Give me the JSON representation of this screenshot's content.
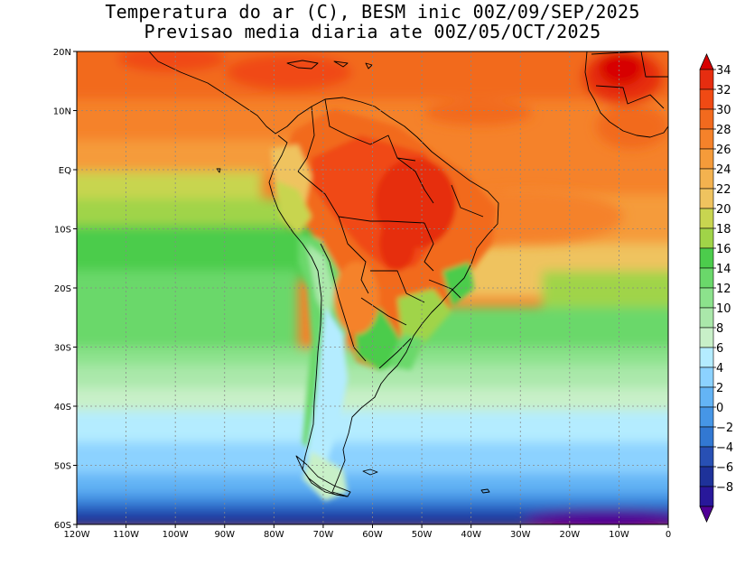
{
  "title": {
    "line1": "Temperatura do ar (C), BESM inic 00Z/09/SEP/2025",
    "line2": "Previsao media diaria ate 00Z/05/OCT/2025"
  },
  "map": {
    "lon_range": [
      -120,
      0
    ],
    "lat_range": [
      -60,
      20
    ],
    "lon_labels": [
      {
        "lon": -120,
        "text": "120W"
      },
      {
        "lon": -110,
        "text": "110W"
      },
      {
        "lon": -100,
        "text": "100W"
      },
      {
        "lon": -90,
        "text": "90W"
      },
      {
        "lon": -80,
        "text": "80W"
      },
      {
        "lon": -70,
        "text": "70W"
      },
      {
        "lon": -60,
        "text": "60W"
      },
      {
        "lon": -50,
        "text": "50W"
      },
      {
        "lon": -40,
        "text": "40W"
      },
      {
        "lon": -30,
        "text": "30W"
      },
      {
        "lon": -20,
        "text": "20W"
      },
      {
        "lon": -10,
        "text": "10W"
      },
      {
        "lon": 0,
        "text": "0"
      }
    ],
    "lat_labels": [
      {
        "lat": 20,
        "text": "20N"
      },
      {
        "lat": 10,
        "text": "10N"
      },
      {
        "lat": 0,
        "text": "EQ"
      },
      {
        "lat": -10,
        "text": "10S"
      },
      {
        "lat": -20,
        "text": "20S"
      },
      {
        "lat": -30,
        "text": "30S"
      },
      {
        "lat": -40,
        "text": "40S"
      },
      {
        "lat": -50,
        "text": "50S"
      },
      {
        "lat": -60,
        "text": "60S"
      }
    ]
  },
  "colorbar": {
    "levels": [
      34,
      32,
      30,
      28,
      26,
      24,
      22,
      20,
      18,
      16,
      14,
      12,
      10,
      8,
      6,
      4,
      2,
      0,
      -2,
      -4,
      -6,
      -8
    ],
    "labels": [
      "34",
      "32",
      "30",
      "28",
      "26",
      "24",
      "22",
      "20",
      "18",
      "16",
      "14",
      "12",
      "10",
      "8",
      "6",
      "4",
      "2",
      "0",
      "−2",
      "−4",
      "−6",
      "−8"
    ],
    "colors": [
      "#d70000",
      "#e62d10",
      "#f04a14",
      "#f26a1e",
      "#f5822a",
      "#f59b3a",
      "#f3b24f",
      "#efc35f",
      "#c8d550",
      "#a0d448",
      "#4ccc4c",
      "#6ad86a",
      "#8ce28c",
      "#aae8aa",
      "#c8f0c8",
      "#b4ecff",
      "#8cd2ff",
      "#64b4f5",
      "#4696e6",
      "#3278d2",
      "#2850b4",
      "#1e329a",
      "#28189a",
      "#500096"
    ]
  }
}
